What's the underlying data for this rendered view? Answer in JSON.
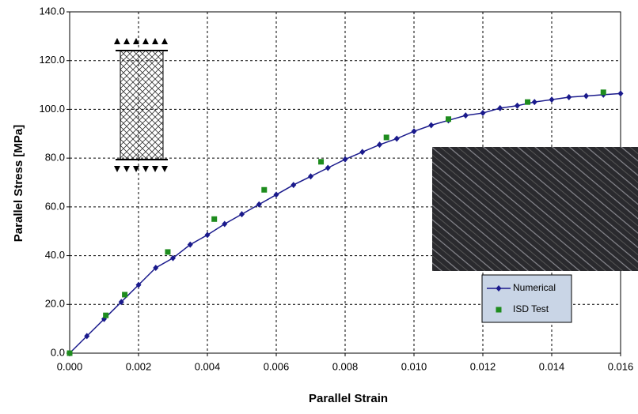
{
  "chart_data": {
    "type": "scatter",
    "x_label": "Parallel Strain",
    "y_label": "Parallel Stress [MPa]",
    "xlim": [
      0,
      0.016
    ],
    "ylim": [
      0,
      140
    ],
    "xticks": [
      {
        "value": 0,
        "label": "0.000"
      },
      {
        "value": 0.002,
        "label": "0.002"
      },
      {
        "value": 0.004,
        "label": "0.004"
      },
      {
        "value": 0.006,
        "label": "0.006"
      },
      {
        "value": 0.008,
        "label": "0.008"
      },
      {
        "value": 0.01,
        "label": "0.010"
      },
      {
        "value": 0.012,
        "label": "0.012"
      },
      {
        "value": 0.014,
        "label": "0.014"
      },
      {
        "value": 0.016,
        "label": "0.016"
      }
    ],
    "yticks": [
      {
        "value": 0,
        "label": "0.0"
      },
      {
        "value": 20,
        "label": "20.0"
      },
      {
        "value": 40,
        "label": "40.0"
      },
      {
        "value": 60,
        "label": "60.0"
      },
      {
        "value": 80,
        "label": "80.0"
      },
      {
        "value": 100,
        "label": "100.0"
      },
      {
        "value": 120,
        "label": "120.0"
      },
      {
        "value": 140,
        "label": "140.0"
      }
    ],
    "grid": true,
    "series": [
      {
        "name": "Numerical",
        "color": "#1a1a8c",
        "marker": "diamond",
        "line": true,
        "x": [
          0,
          0.0005,
          0.001,
          0.0015,
          0.002,
          0.0025,
          0.003,
          0.0035,
          0.004,
          0.0045,
          0.005,
          0.0055,
          0.006,
          0.0065,
          0.007,
          0.0075,
          0.008,
          0.0085,
          0.009,
          0.0095,
          0.01,
          0.0105,
          0.011,
          0.0115,
          0.012,
          0.0125,
          0.013,
          0.0135,
          0.014,
          0.0145,
          0.015,
          0.0155,
          0.016
        ],
        "values": [
          0,
          7,
          14,
          21,
          28,
          35,
          39,
          44.5,
          48.5,
          53,
          57,
          61,
          65,
          69,
          72.5,
          76,
          79.5,
          82.5,
          85.5,
          88,
          91,
          93.5,
          95.5,
          97.5,
          98.5,
          100.5,
          101.5,
          103,
          104,
          105,
          105.5,
          106,
          106.5
        ]
      },
      {
        "name": "ISD Test",
        "color": "#1e8c1e",
        "marker": "square",
        "line": false,
        "x": [
          0,
          0.00105,
          0.0016,
          0.00285,
          0.0042,
          0.00565,
          0.0073,
          0.0092,
          0.011,
          0.0133,
          0.0155
        ],
        "values": [
          0,
          15.5,
          24,
          41.5,
          55,
          67,
          78.5,
          88.5,
          96,
          103,
          107
        ]
      }
    ]
  }
}
